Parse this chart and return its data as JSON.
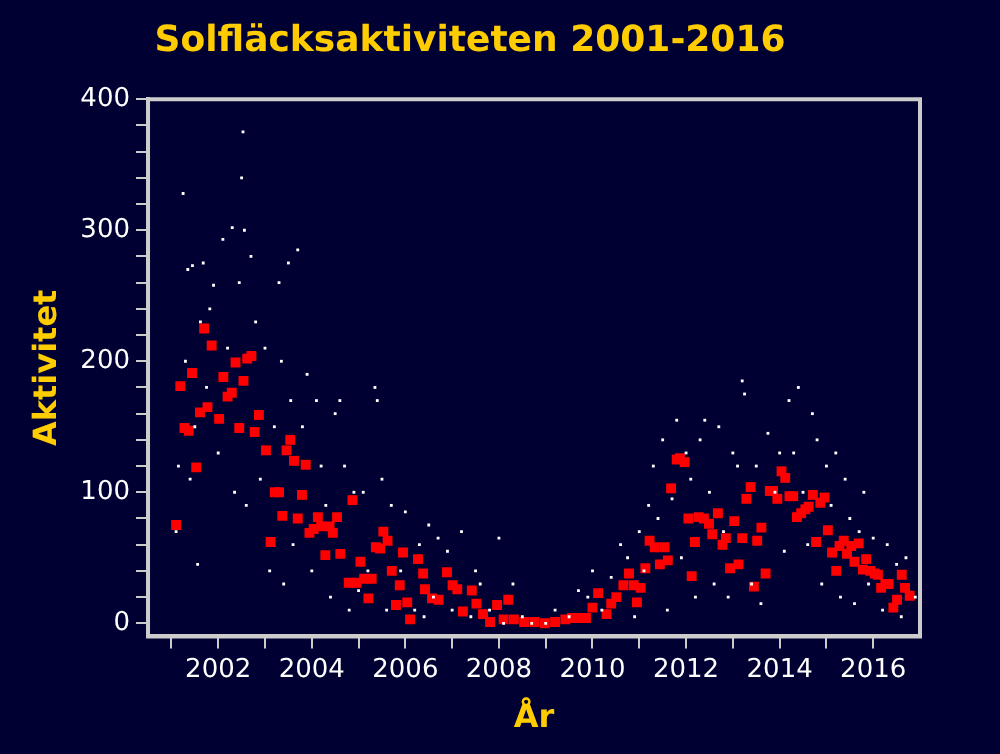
{
  "chart_data": {
    "type": "scatter",
    "title": "Solfläcksaktiviteten 2001-2016",
    "xlabel": "År",
    "ylabel": "Aktivitet",
    "xlim": [
      2000.5,
      2017
    ],
    "xticks": [
      {
        "value": 2001,
        "label": null
      },
      2002,
      {
        "value": 2003,
        "label": null
      },
      2004,
      {
        "value": 2005,
        "label": null
      },
      2006,
      {
        "value": 2007,
        "label": null
      },
      2008,
      {
        "value": 2009,
        "label": null
      },
      2010,
      {
        "value": 2011,
        "label": null
      },
      2012,
      {
        "value": 2013,
        "label": null
      },
      2014,
      {
        "value": 2015,
        "label": null
      },
      2016
    ],
    "ylim": [
      -10,
      400
    ],
    "yticks": [
      0,
      {
        "value": 20,
        "label": null
      },
      {
        "value": 40,
        "label": null
      },
      {
        "value": 60,
        "label": null
      },
      {
        "value": 80,
        "label": null
      },
      100,
      {
        "value": 120,
        "label": null
      },
      {
        "value": 140,
        "label": null
      },
      {
        "value": 160,
        "label": null
      },
      {
        "value": 180,
        "label": null
      },
      200,
      {
        "value": 220,
        "label": null
      },
      {
        "value": 240,
        "label": null
      },
      {
        "value": 260,
        "label": null
      },
      {
        "value": 280,
        "label": null
      },
      300,
      {
        "value": 320,
        "label": null
      },
      {
        "value": 340,
        "label": null
      },
      {
        "value": 360,
        "label": null
      },
      {
        "value": 380,
        "label": null
      },
      400
    ],
    "grid": false,
    "legend": false,
    "marker": "square",
    "series": [
      {
        "color": "#ffffff",
        "x": [
          2001.1,
          2001.15,
          2001.25,
          2001.3,
          2001.35,
          2001.4,
          2001.45,
          2001.5,
          2001.56,
          2001.62,
          2001.68,
          2001.75,
          2001.82,
          2001.9,
          2002.0,
          2002.1,
          2002.2,
          2002.3,
          2002.35,
          2002.45,
          2002.5,
          2002.53,
          2002.56,
          2002.6,
          2002.7,
          2002.8,
          2002.9,
          2003.0,
          2003.1,
          2003.2,
          2003.3,
          2003.35,
          2003.4,
          2003.5,
          2003.55,
          2003.6,
          2003.7,
          2003.8,
          2003.9,
          2004.0,
          2004.1,
          2004.2,
          2004.3,
          2004.4,
          2004.5,
          2004.6,
          2004.7,
          2004.8,
          2004.9,
          2005.0,
          2005.1,
          2005.2,
          2005.35,
          2005.4,
          2005.5,
          2005.6,
          2005.7,
          2005.9,
          2006.0,
          2006.2,
          2006.3,
          2006.4,
          2006.5,
          2006.6,
          2006.7,
          2006.9,
          2007.0,
          2007.2,
          2007.4,
          2007.5,
          2007.6,
          2007.8,
          2008.0,
          2008.1,
          2008.3,
          2008.5,
          2008.7,
          2009.0,
          2009.2,
          2009.5,
          2009.7,
          2009.9,
          2010.0,
          2010.2,
          2010.4,
          2010.6,
          2010.75,
          2010.9,
          2011.0,
          2011.1,
          2011.2,
          2011.3,
          2011.4,
          2011.5,
          2011.6,
          2011.7,
          2011.8,
          2011.9,
          2012.0,
          2012.1,
          2012.2,
          2012.3,
          2012.4,
          2012.5,
          2012.6,
          2012.7,
          2012.8,
          2012.9,
          2013.0,
          2013.1,
          2013.2,
          2013.25,
          2013.4,
          2013.5,
          2013.6,
          2013.75,
          2013.9,
          2014.0,
          2014.1,
          2014.2,
          2014.3,
          2014.4,
          2014.5,
          2014.6,
          2014.7,
          2014.8,
          2014.9,
          2015.0,
          2015.1,
          2015.2,
          2015.3,
          2015.4,
          2015.5,
          2015.6,
          2015.7,
          2015.8,
          2015.9,
          2016.0,
          2016.2,
          2016.3,
          2016.5,
          2016.6,
          2016.7,
          2016.9
        ],
        "values": [
          70,
          120,
          328,
          200,
          270,
          110,
          273,
          150,
          45,
          230,
          275,
          180,
          240,
          258,
          130,
          293,
          210,
          302,
          100,
          260,
          340,
          375,
          300,
          90,
          280,
          230,
          110,
          210,
          40,
          150,
          260,
          200,
          30,
          275,
          170,
          60,
          285,
          150,
          190,
          40,
          170,
          120,
          90,
          20,
          160,
          170,
          120,
          10,
          100,
          25,
          100,
          40,
          180,
          170,
          110,
          10,
          90,
          40,
          85,
          10,
          60,
          5,
          75,
          20,
          65,
          55,
          10,
          70,
          5,
          40,
          30,
          10,
          65,
          0,
          30,
          5,
          0,
          0,
          10,
          5,
          25,
          20,
          40,
          10,
          35,
          60,
          50,
          5,
          70,
          40,
          90,
          120,
          80,
          140,
          10,
          95,
          155,
          50,
          130,
          110,
          20,
          140,
          155,
          100,
          30,
          150,
          70,
          20,
          130,
          120,
          185,
          175,
          30,
          120,
          15,
          145,
          100,
          130,
          55,
          170,
          130,
          180,
          100,
          60,
          160,
          140,
          30,
          120,
          90,
          130,
          20,
          110,
          80,
          15,
          70,
          100,
          30,
          65,
          10,
          60,
          45,
          5,
          50,
          20
        ]
      },
      {
        "color": "#ff0000",
        "x": [
          2001.1,
          2001.19,
          2001.28,
          2001.37,
          2001.44,
          2001.53,
          2001.61,
          2001.7,
          2001.77,
          2001.86,
          2002.02,
          2002.11,
          2002.2,
          2002.29,
          2002.37,
          2002.45,
          2002.54,
          2002.62,
          2002.71,
          2002.78,
          2002.87,
          2003.02,
          2003.12,
          2003.21,
          2003.3,
          2003.37,
          2003.46,
          2003.54,
          2003.62,
          2003.7,
          2003.79,
          2003.87,
          2003.95,
          2004.04,
          2004.13,
          2004.2,
          2004.29,
          2004.38,
          2004.45,
          2004.54,
          2004.61,
          2004.79,
          2004.87,
          2004.96,
          2005.04,
          2005.12,
          2005.21,
          2005.28,
          2005.37,
          2005.46,
          2005.53,
          2005.62,
          2005.71,
          2005.8,
          2005.88,
          2005.95,
          2006.04,
          2006.1,
          2006.27,
          2006.38,
          2006.42,
          2006.57,
          2006.71,
          2006.89,
          2007.01,
          2007.11,
          2007.23,
          2007.42,
          2007.52,
          2007.66,
          2007.81,
          2007.96,
          2008.1,
          2008.2,
          2008.32,
          2008.54,
          2008.76,
          2008.98,
          2009.2,
          2009.42,
          2009.56,
          2009.71,
          2009.86,
          2010.0,
          2010.12,
          2010.3,
          2010.4,
          2010.51,
          2010.66,
          2010.78,
          2010.88,
          2010.95,
          2011.03,
          2011.13,
          2011.22,
          2011.33,
          2011.44,
          2011.54,
          2011.61,
          2011.68,
          2011.8,
          2011.87,
          2011.97,
          2012.05,
          2012.12,
          2012.19,
          2012.27,
          2012.38,
          2012.49,
          2012.56,
          2012.68,
          2012.78,
          2012.85,
          2012.94,
          2013.03,
          2013.12,
          2013.2,
          2013.29,
          2013.38,
          2013.45,
          2013.52,
          2013.61,
          2013.7,
          2013.79,
          2013.86,
          2013.95,
          2014.04,
          2014.12,
          2014.21,
          2014.29,
          2014.37,
          2014.46,
          2014.55,
          2014.62,
          2014.71,
          2014.78,
          2014.87,
          2014.96,
          2015.03,
          2015.12,
          2015.21,
          2015.28,
          2015.37,
          2015.44,
          2015.53,
          2015.6,
          2015.69,
          2015.78,
          2015.85,
          2015.94,
          2016.03,
          2016.1,
          2016.17,
          2016.26,
          2016.33,
          2016.43,
          2016.51,
          2016.61,
          2016.68,
          2016.78
        ],
        "values": [
          75,
          181,
          149,
          147,
          191,
          119,
          161,
          225,
          165,
          212,
          156,
          188,
          173,
          176,
          199,
          149,
          185,
          202,
          204,
          146,
          159,
          132,
          62,
          100,
          100,
          82,
          132,
          140,
          124,
          80,
          98,
          121,
          69,
          72,
          81,
          74,
          52,
          74,
          69,
          81,
          53,
          31,
          94,
          31,
          47,
          34,
          19,
          34,
          58,
          57,
          70,
          63,
          40,
          14,
          29,
          54,
          16,
          3,
          49,
          38,
          26,
          19,
          18,
          39,
          29,
          26,
          9,
          25,
          15,
          7,
          1,
          14,
          3,
          18,
          3,
          1,
          1,
          0,
          1,
          3,
          4,
          4,
          4,
          12,
          23,
          7,
          15,
          20,
          29,
          38,
          29,
          16,
          27,
          42,
          63,
          58,
          45,
          58,
          48,
          103,
          125,
          126,
          123,
          80,
          36,
          62,
          81,
          80,
          76,
          68,
          84,
          60,
          65,
          42,
          78,
          45,
          65,
          95,
          104,
          28,
          63,
          73,
          38,
          101,
          101,
          95,
          116,
          111,
          97,
          97,
          81,
          84,
          87,
          89,
          98,
          62,
          92,
          96,
          71,
          54,
          40,
          59,
          63,
          53,
          59,
          47,
          61,
          41,
          49,
          40,
          38,
          37,
          27,
          30,
          30,
          12,
          18,
          37,
          27,
          21
        ]
      }
    ]
  }
}
